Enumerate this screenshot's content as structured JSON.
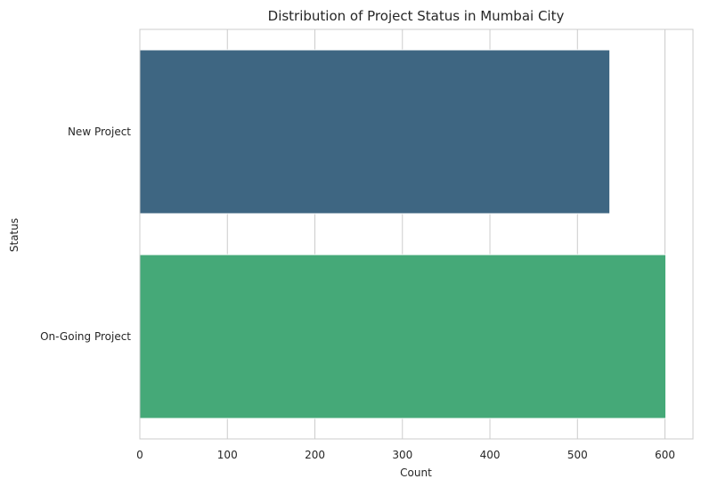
{
  "chart_data": {
    "type": "bar",
    "orientation": "horizontal",
    "title": "Distribution of Project Status in Mumbai City",
    "xlabel": "Count",
    "ylabel": "Status",
    "categories": [
      "New Project",
      "On-Going Project"
    ],
    "values": [
      537,
      601
    ],
    "xlim": [
      0,
      632
    ],
    "xticks": [
      0,
      100,
      200,
      300,
      400,
      500,
      600
    ],
    "grid": true,
    "colors": [
      "#3e6682",
      "#45a978"
    ]
  }
}
